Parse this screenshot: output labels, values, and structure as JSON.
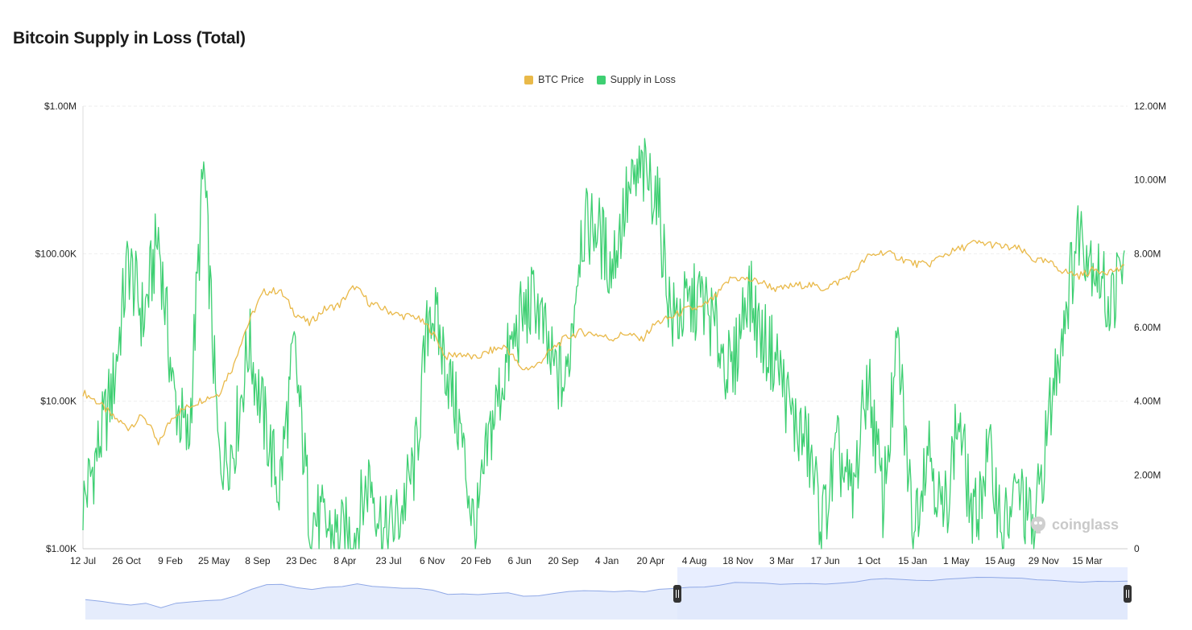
{
  "page": {
    "title": "Bitcoin Supply in Loss (Total)",
    "watermark": "coinglass"
  },
  "colors": {
    "btc_price": "#e9b949",
    "supply_in_loss": "#3ecf72",
    "grid": "#eeeeee",
    "navigator_fill": "#e8eeff",
    "navigator_line": "#8fa8e6"
  },
  "chart_data": {
    "type": "line",
    "title": "Bitcoin Supply in Loss (Total)",
    "x_labels": [
      "12 Jul",
      "26 Oct",
      "9 Feb",
      "25 May",
      "8 Sep",
      "23 Dec",
      "8 Apr",
      "23 Jul",
      "6 Nov",
      "20 Feb",
      "6 Jun",
      "20 Sep",
      "4 Jan",
      "20 Apr",
      "4 Aug",
      "18 Nov",
      "3 Mar",
      "17 Jun",
      "1 Oct",
      "15 Jan",
      "1 May",
      "15 Aug",
      "29 Nov",
      "15 Mar"
    ],
    "y_left": {
      "scale": "log",
      "ticks": [
        "$1.00K",
        "$10.00K",
        "$100.00K",
        "$1.00M"
      ],
      "range": [
        1000,
        1000000
      ]
    },
    "y_right": {
      "scale": "linear",
      "ticks": [
        "0",
        "2.00M",
        "4.00M",
        "6.00M",
        "8.00M",
        "10.00M",
        "12.00M"
      ],
      "range": [
        0,
        12000000
      ]
    },
    "legend_position": "top-center",
    "grid": true,
    "series": [
      {
        "name": "BTC Price",
        "axis": "left",
        "values": [
          11500,
          9800,
          7800,
          6600,
          8000,
          5000,
          8000,
          9200,
          10400,
          11200,
          17500,
          34000,
          55000,
          56500,
          40000,
          33500,
          42000,
          45000,
          60000,
          46000,
          42000,
          38000,
          37500,
          31000,
          20000,
          21000,
          19500,
          22000,
          23500,
          16500,
          17200,
          22000,
          27000,
          29500,
          28500,
          26500,
          29000,
          26000,
          34000,
          37000,
          42000,
          43000,
          52000,
          69000,
          67000,
          64000,
          57000,
          60500,
          62000,
          58000,
          64000,
          73000,
          95000,
          103000,
          95000,
          86000,
          84000,
          98000,
          107000,
          118000,
          117000,
          111000,
          108000,
          91000,
          87000,
          76000,
          71000,
          78000,
          76000,
          80000
        ]
      },
      {
        "name": "Supply in Loss",
        "axis": "right",
        "values": [
          1200000,
          2700000,
          4400000,
          7800000,
          6200000,
          8500000,
          4200000,
          2800000,
          10400000,
          2400000,
          2800000,
          5600000,
          3500000,
          1600000,
          5400000,
          1000000,
          600000,
          300000,
          400000,
          2000000,
          300000,
          900000,
          2300000,
          6700000,
          5100000,
          3200000,
          300000,
          3200000,
          4900000,
          6200000,
          6800000,
          5000000,
          4400000,
          8600000,
          8800000,
          7600000,
          9400000,
          10200000,
          9700000,
          6200000,
          6500000,
          6800000,
          5800000,
          4600000,
          7100000,
          5700000,
          5100000,
          3500000,
          2800000,
          700000,
          2600000,
          1300000,
          4700000,
          1300000,
          5500000,
          500000,
          3000000,
          700000,
          3600000,
          600000,
          2600000,
          500000,
          1600000,
          400000,
          3500000,
          6300000,
          8700000,
          7800000,
          6600000,
          7700000
        ]
      }
    ]
  }
}
